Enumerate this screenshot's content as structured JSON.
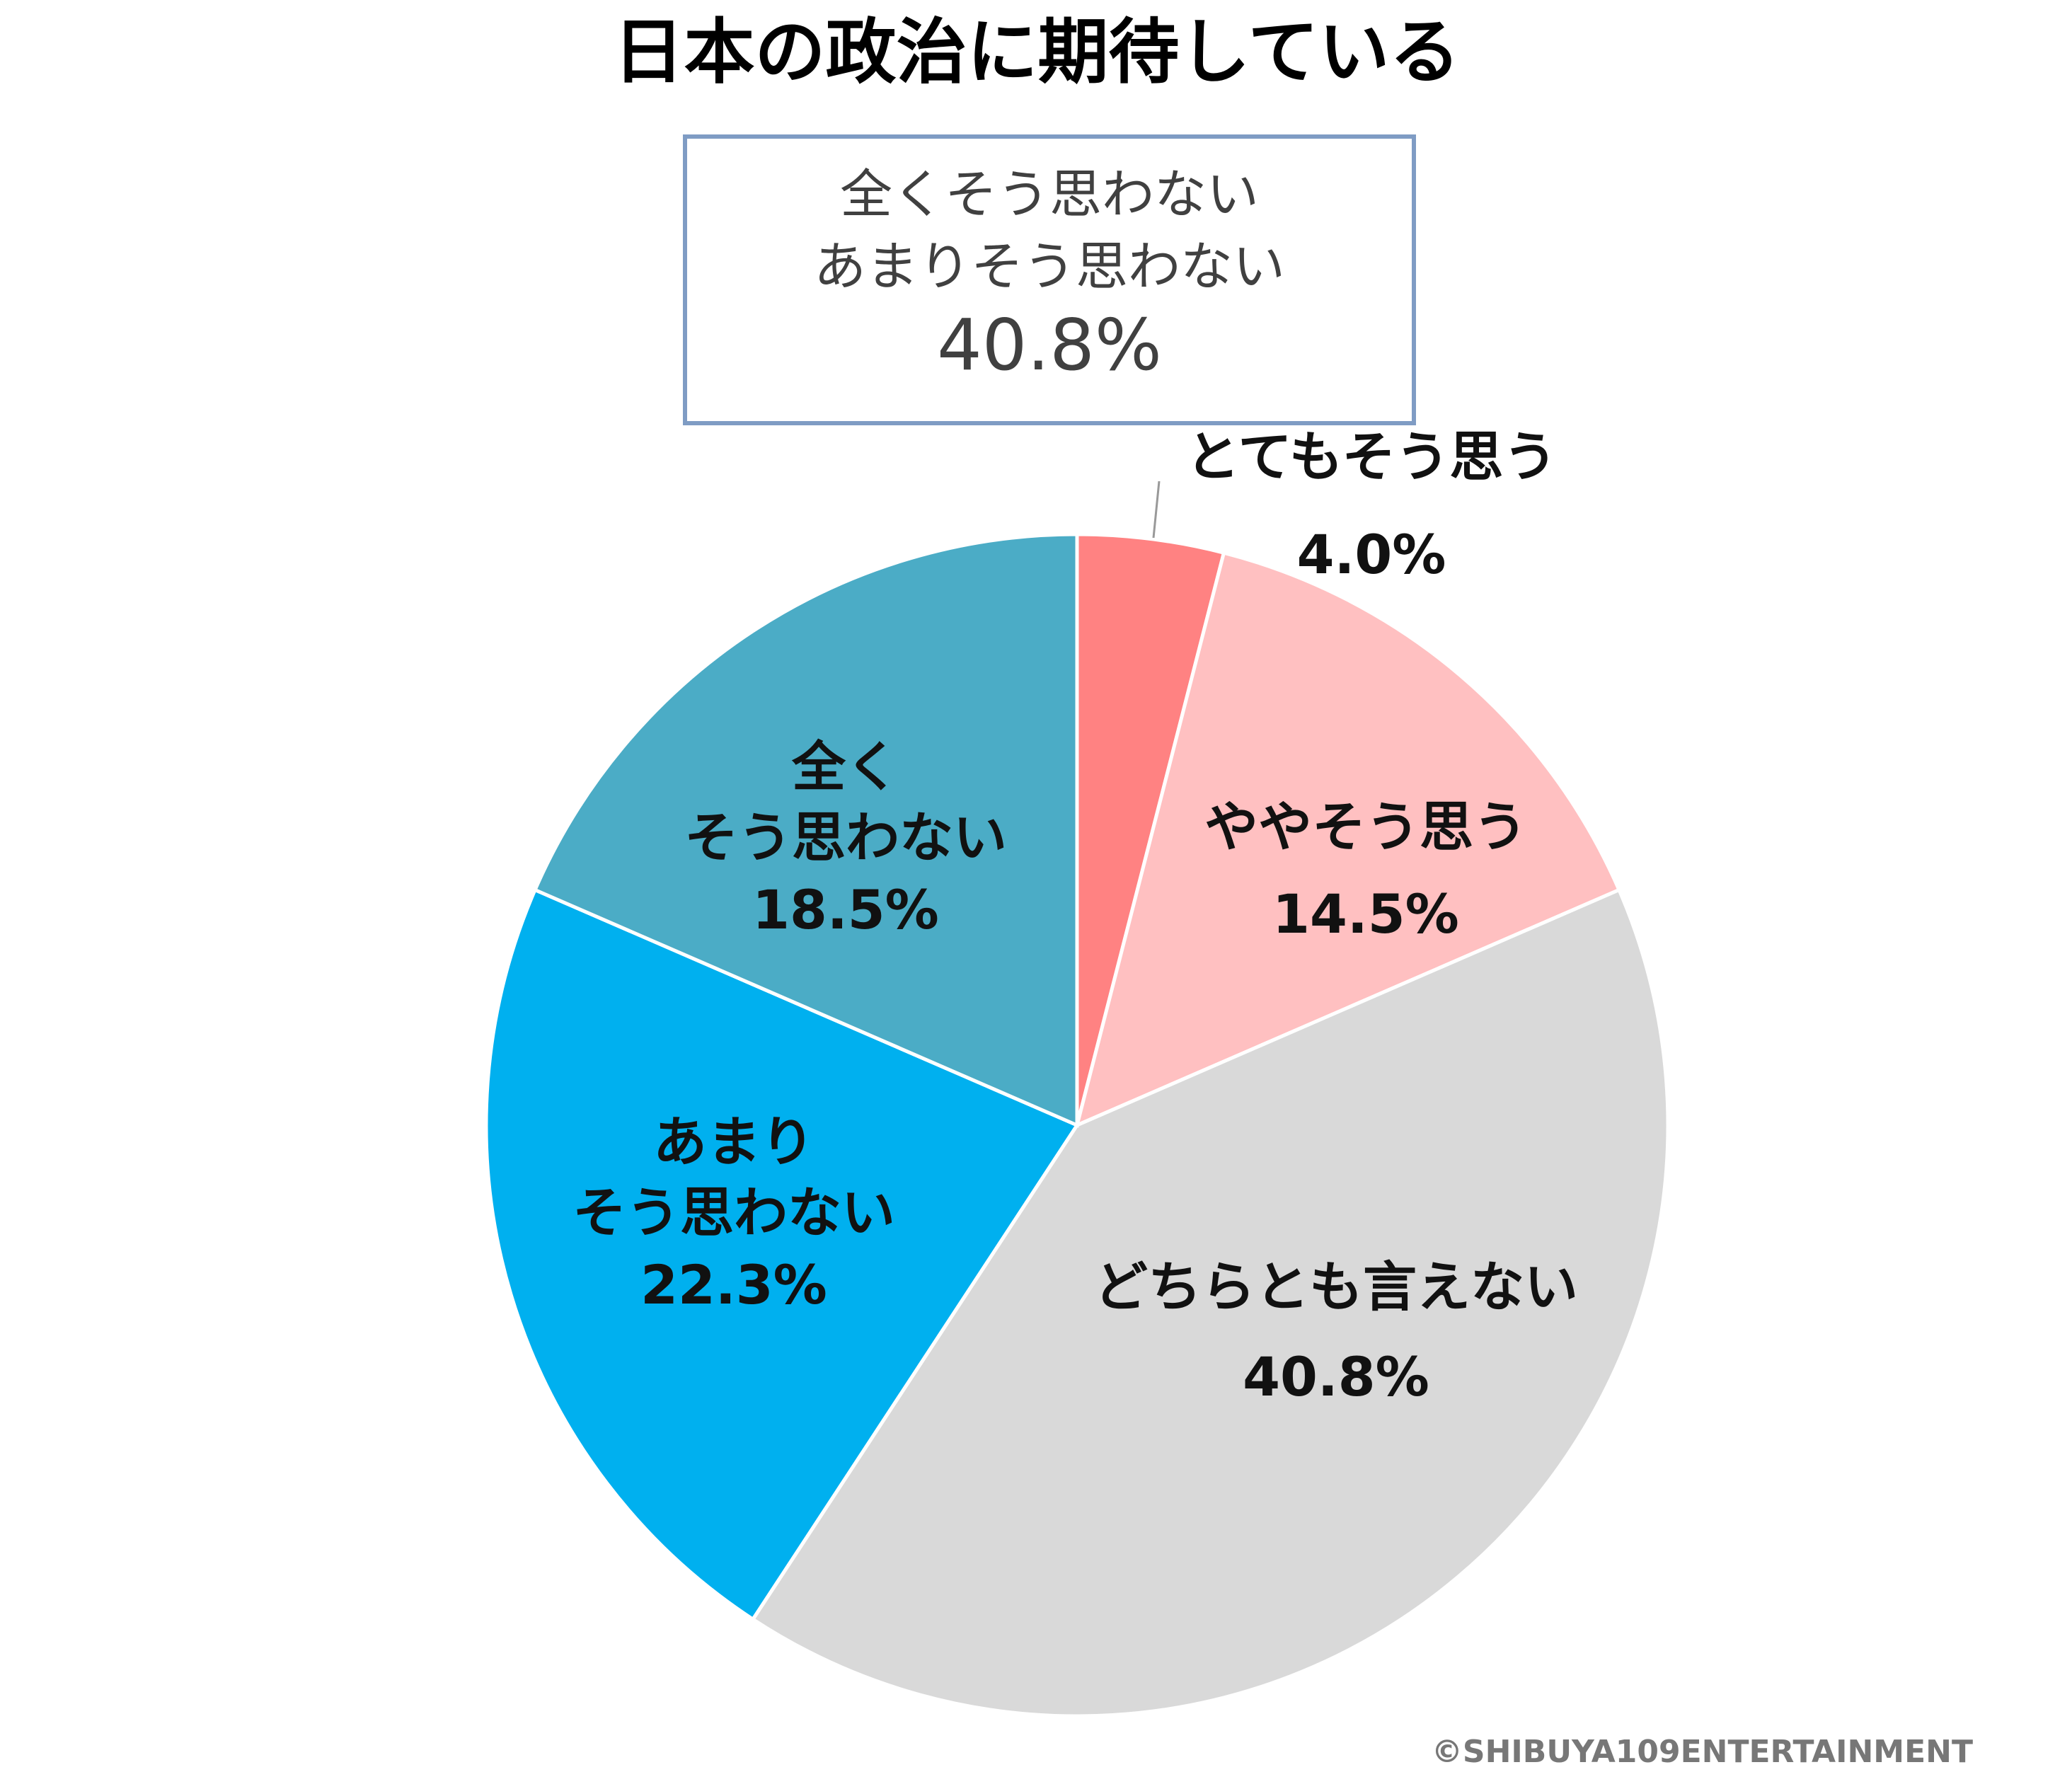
{
  "chart_data": {
    "type": "pie",
    "title": "日本の政治に期待している",
    "slices": [
      {
        "label": "とてもそう思う",
        "value_text": "4.0%",
        "value": 4.0,
        "color": "#FF8282"
      },
      {
        "label": "ややそう思う",
        "value_text": "14.5%",
        "value": 14.5,
        "color": "#FFC0C1"
      },
      {
        "label": "どちらとも言えない",
        "value_text": "40.8%",
        "value": 40.8,
        "color": "#D9D9D9"
      },
      {
        "label": "あまり\nそう思わない",
        "value_text": "22.3%",
        "value": 22.3,
        "color": "#00B0EF"
      },
      {
        "label": "全く\nそう思わない",
        "value_text": "18.5%",
        "value": 18.5,
        "color": "#4BACC6"
      }
    ],
    "start_angle": "top",
    "direction": "clockwise",
    "legend": "none"
  },
  "callout": {
    "line1": "全くそう思わない",
    "line2": "あまりそう思わない",
    "value": "40.8%",
    "border_color": "#7F9CC4"
  },
  "copyright": "©SHIBUYA109ENTERTAINMENT"
}
